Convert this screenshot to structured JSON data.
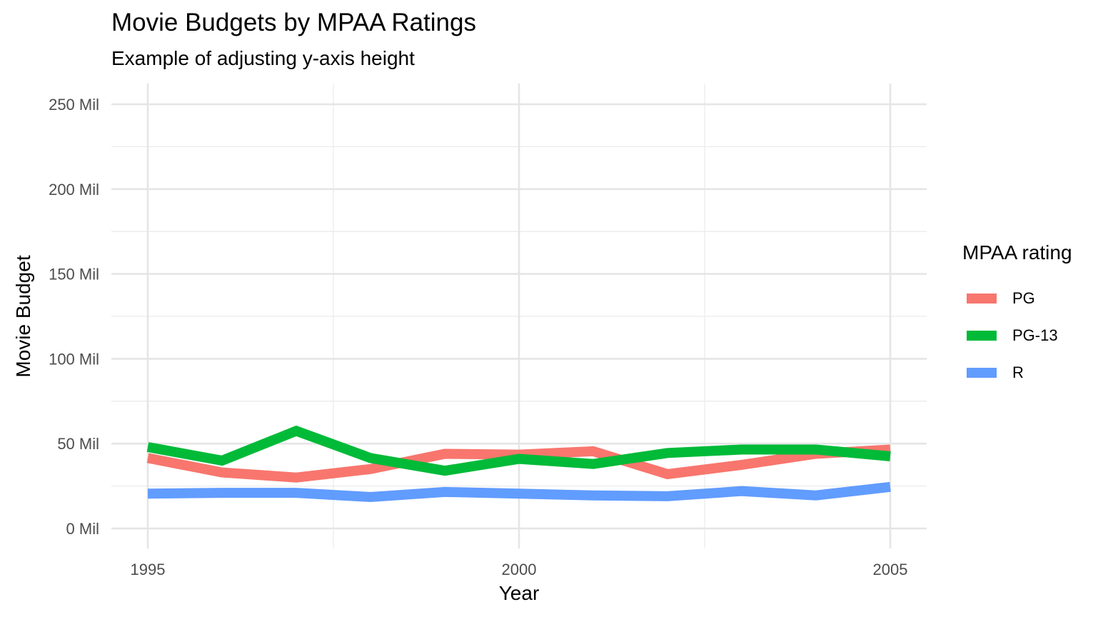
{
  "chart_data": {
    "type": "line",
    "title": "Movie Budgets by MPAA Ratings",
    "subtitle": "Example of adjusting y-axis height",
    "xlabel": "Year",
    "ylabel": "Movie Budget",
    "xlim": [
      1995,
      2005
    ],
    "ylim": [
      0,
      250000000
    ],
    "x_ticks": [
      1995,
      2000,
      2005
    ],
    "x_tick_labels": [
      "1995",
      "2000",
      "2005"
    ],
    "y_ticks": [
      0,
      50000000,
      100000000,
      150000000,
      200000000,
      250000000
    ],
    "y_tick_labels": [
      "0 Mil",
      "50 Mil",
      "100 Mil",
      "150 Mil",
      "200 Mil",
      "250 Mil"
    ],
    "grid": true,
    "legend_title": "MPAA rating",
    "legend_position": "right",
    "x": [
      1995,
      1996,
      1997,
      1998,
      1999,
      2000,
      2001,
      2002,
      2003,
      2004,
      2005
    ],
    "series": [
      {
        "name": "PG",
        "color": "#F8766D",
        "values": [
          41500000,
          33000000,
          30000000,
          35000000,
          44000000,
          43500000,
          45500000,
          32000000,
          37500000,
          44000000,
          46500000
        ]
      },
      {
        "name": "PG-13",
        "color": "#00BA38",
        "values": [
          48000000,
          40000000,
          57500000,
          41500000,
          34000000,
          41000000,
          38000000,
          44500000,
          46500000,
          46500000,
          42500000
        ]
      },
      {
        "name": "R",
        "color": "#619CFF",
        "values": [
          20500000,
          21000000,
          21000000,
          18500000,
          21500000,
          20500000,
          19500000,
          19000000,
          22000000,
          19500000,
          24500000
        ]
      }
    ]
  }
}
